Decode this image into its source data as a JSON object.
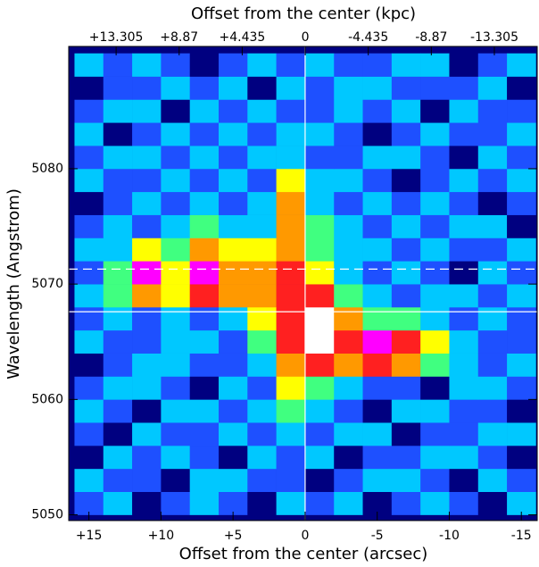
{
  "chart_data": {
    "type": "heatmap",
    "xlabel": "Offset from the center (arcsec)",
    "x2label": "Offset from the center (kpc)",
    "ylabel": "Wavelength (Angstrom)",
    "xlim": [
      16.4,
      -16.1
    ],
    "x2lim": [
      16.64,
      -16.32
    ],
    "ylim": [
      5049.5,
      5090.6
    ],
    "xticks": [
      {
        "value": 15,
        "label": "+15"
      },
      {
        "value": 10,
        "label": "+10"
      },
      {
        "value": 5,
        "label": "+5"
      },
      0,
      -5,
      -10,
      -15
    ],
    "x2ticks": [
      {
        "value": 13.305,
        "label": "+13.305"
      },
      {
        "value": 8.87,
        "label": "+8.87"
      },
      {
        "value": 4.435,
        "label": "+4.435"
      },
      0,
      -4.435,
      -8.87,
      -13.305
    ],
    "yticks": [
      5050,
      5060,
      5070,
      5080
    ],
    "xbins": [
      16,
      14,
      12,
      10,
      8,
      6,
      4,
      2,
      0,
      -2,
      -4,
      -6,
      -8,
      -10,
      -12,
      -14,
      -16
    ],
    "ybins": [
      5050,
      5052,
      5054,
      5056,
      5058,
      5060,
      5062,
      5064,
      5066,
      5068,
      5070,
      5072,
      5074,
      5076,
      5078,
      5080,
      5082,
      5084,
      5086,
      5088,
      5090
    ],
    "colorscale": [
      "#000080",
      "#1e50ff",
      "#00c8ff",
      "#40ff80",
      "#ffff00",
      "#ff9900",
      "#ff2020",
      "#ff00ff",
      "#ffffff"
    ],
    "z": [
      [
        1,
        2,
        0,
        1,
        2,
        1,
        0,
        2,
        1,
        2,
        0,
        1,
        2,
        1,
        0,
        2
      ],
      [
        2,
        1,
        1,
        0,
        2,
        2,
        1,
        1,
        0,
        1,
        2,
        2,
        1,
        0,
        2,
        1
      ],
      [
        0,
        2,
        1,
        2,
        1,
        0,
        2,
        1,
        2,
        0,
        1,
        1,
        2,
        2,
        1,
        0
      ],
      [
        1,
        0,
        2,
        1,
        1,
        2,
        1,
        2,
        1,
        2,
        2,
        0,
        1,
        1,
        2,
        2
      ],
      [
        2,
        1,
        0,
        2,
        2,
        1,
        2,
        3,
        2,
        1,
        0,
        2,
        2,
        1,
        1,
        0
      ],
      [
        1,
        2,
        2,
        1,
        0,
        2,
        1,
        4,
        3,
        2,
        1,
        1,
        0,
        2,
        2,
        1
      ],
      [
        0,
        1,
        2,
        2,
        1,
        1,
        2,
        5,
        6,
        5,
        6,
        5,
        3,
        2,
        1,
        2
      ],
      [
        2,
        1,
        1,
        2,
        2,
        1,
        3,
        6,
        8,
        6,
        7,
        6,
        4,
        2,
        1,
        1
      ],
      [
        1,
        2,
        1,
        2,
        1,
        2,
        4,
        6,
        8,
        5,
        3,
        3,
        2,
        1,
        2,
        1
      ],
      [
        2,
        3,
        5,
        4,
        6,
        5,
        5,
        6,
        6,
        3,
        2,
        1,
        2,
        2,
        1,
        2
      ],
      [
        1,
        3,
        7,
        4,
        7,
        5,
        5,
        6,
        4,
        2,
        1,
        2,
        1,
        0,
        2,
        1
      ],
      [
        2,
        2,
        4,
        3,
        5,
        4,
        4,
        5,
        3,
        2,
        2,
        1,
        2,
        1,
        1,
        2
      ],
      [
        1,
        2,
        1,
        2,
        3,
        2,
        2,
        5,
        3,
        2,
        1,
        2,
        1,
        2,
        2,
        0
      ],
      [
        0,
        1,
        2,
        1,
        2,
        1,
        2,
        5,
        2,
        1,
        2,
        1,
        2,
        1,
        0,
        1
      ],
      [
        2,
        1,
        1,
        2,
        1,
        2,
        1,
        4,
        2,
        2,
        1,
        0,
        1,
        2,
        1,
        2
      ],
      [
        1,
        2,
        2,
        1,
        2,
        1,
        2,
        2,
        1,
        1,
        2,
        2,
        1,
        0,
        2,
        1
      ],
      [
        2,
        0,
        1,
        2,
        1,
        2,
        1,
        2,
        2,
        1,
        0,
        1,
        2,
        1,
        1,
        2
      ],
      [
        1,
        2,
        2,
        0,
        2,
        1,
        2,
        1,
        1,
        2,
        1,
        2,
        0,
        2,
        1,
        1
      ],
      [
        0,
        1,
        1,
        2,
        1,
        2,
        0,
        2,
        1,
        2,
        2,
        1,
        1,
        1,
        2,
        0
      ],
      [
        2,
        1,
        2,
        1,
        0,
        1,
        2,
        1,
        2,
        1,
        1,
        2,
        2,
        0,
        1,
        2
      ]
    ],
    "hlines": [
      {
        "y": 5071.3,
        "dash": true
      },
      {
        "y": 5067.6,
        "dash": false
      }
    ],
    "vlines": [
      0
    ]
  }
}
